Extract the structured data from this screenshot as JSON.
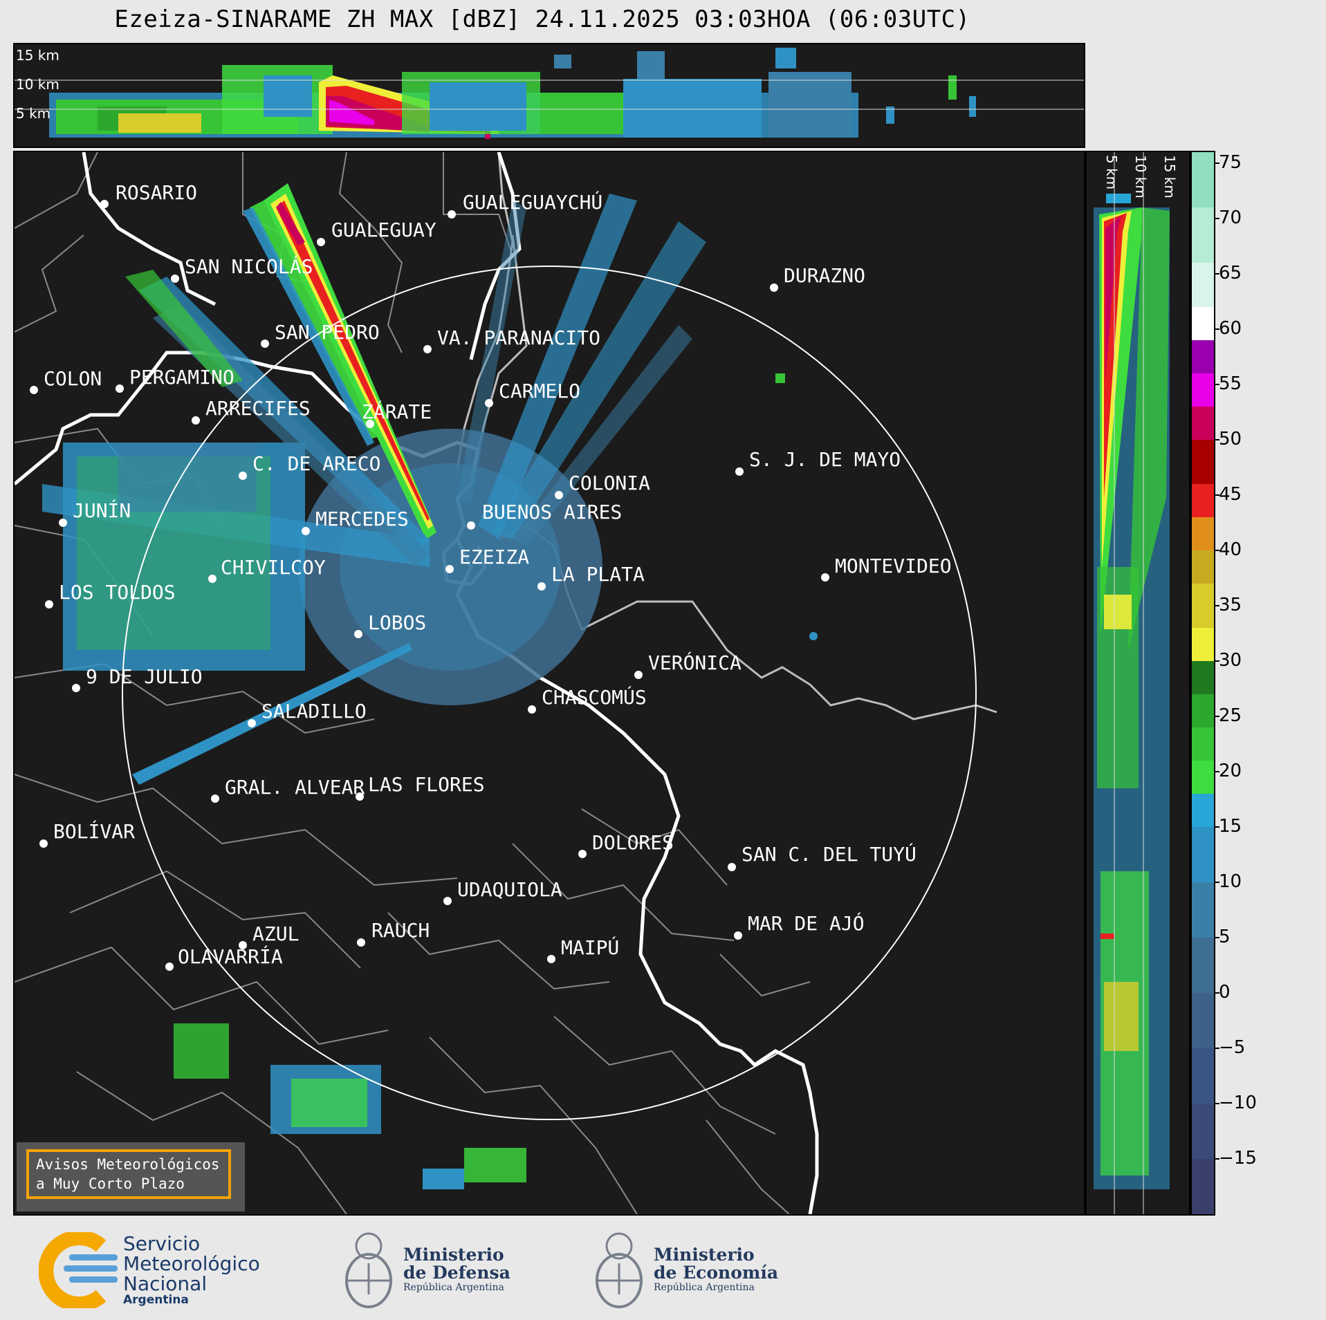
{
  "title": "Ezeiza-SINARAME ZH MAX [dBZ] 24.11.2025 03:03HOA (06:03UTC)",
  "cross_section_top": {
    "altitude_labels": [
      "15 km",
      "10 km",
      "5 km"
    ]
  },
  "cross_section_right": {
    "altitude_labels": [
      "5 km",
      "10 km",
      "15 km"
    ]
  },
  "colorbar": {
    "unit": "dBZ",
    "ticks": [
      "75",
      "70",
      "65",
      "60",
      "55",
      "50",
      "45",
      "40",
      "35",
      "30",
      "25",
      "20",
      "15",
      "10",
      "5",
      "0",
      "−5",
      "−10",
      "−15"
    ],
    "min": -20,
    "max": 76,
    "bands": [
      {
        "from": -20,
        "to": -15,
        "color": "#3b3f6b"
      },
      {
        "from": -15,
        "to": -10,
        "color": "#3c4a7a"
      },
      {
        "from": -10,
        "to": -5,
        "color": "#3b5583"
      },
      {
        "from": -5,
        "to": 0,
        "color": "#3d6188"
      },
      {
        "from": 0,
        "to": 5,
        "color": "#3f6e93"
      },
      {
        "from": 5,
        "to": 10,
        "color": "#3a7fa8"
      },
      {
        "from": 10,
        "to": 15,
        "color": "#2f92c4"
      },
      {
        "from": 15,
        "to": 18,
        "color": "#28a6d8"
      },
      {
        "from": 18,
        "to": 21,
        "color": "#3fdc3f"
      },
      {
        "from": 21,
        "to": 24,
        "color": "#36c436"
      },
      {
        "from": 24,
        "to": 27,
        "color": "#2ca82c"
      },
      {
        "from": 27,
        "to": 30,
        "color": "#1f7a1f"
      },
      {
        "from": 30,
        "to": 33,
        "color": "#efef3a"
      },
      {
        "from": 33,
        "to": 37,
        "color": "#d8cc2c"
      },
      {
        "from": 37,
        "to": 40,
        "color": "#c8aa20"
      },
      {
        "from": 40,
        "to": 43,
        "color": "#e0901a"
      },
      {
        "from": 43,
        "to": 46,
        "color": "#e82020"
      },
      {
        "from": 46,
        "to": 50,
        "color": "#a80000"
      },
      {
        "from": 50,
        "to": 53,
        "color": "#c8005a"
      },
      {
        "from": 53,
        "to": 56,
        "color": "#e800e8"
      },
      {
        "from": 56,
        "to": 59,
        "color": "#9a00b0"
      },
      {
        "from": 59,
        "to": 62,
        "color": "#ffffff"
      },
      {
        "from": 62,
        "to": 66,
        "color": "#d9f5ea"
      },
      {
        "from": 66,
        "to": 71,
        "color": "#b4ecd6"
      },
      {
        "from": 71,
        "to": 76,
        "color": "#8fdfc0"
      }
    ]
  },
  "cities": [
    {
      "name": "ROSARIO"
    },
    {
      "name": "GUALEGUAYCHÚ"
    },
    {
      "name": "GUALEGUAY"
    },
    {
      "name": "SAN NICOLÁS"
    },
    {
      "name": "DURAZNO"
    },
    {
      "name": "SAN PEDRO"
    },
    {
      "name": "VA. PARANACITO"
    },
    {
      "name": "COLON"
    },
    {
      "name": "PERGAMINO"
    },
    {
      "name": "CARMELO"
    },
    {
      "name": "ARRECIFES"
    },
    {
      "name": "ZÁRATE"
    },
    {
      "name": "C. DE ARECO"
    },
    {
      "name": "S. J. DE MAYO"
    },
    {
      "name": "COLONIA"
    },
    {
      "name": "BUENOS AIRES"
    },
    {
      "name": "JUNÍN"
    },
    {
      "name": "MERCEDES"
    },
    {
      "name": "EZEIZA"
    },
    {
      "name": "MONTEVIDEO"
    },
    {
      "name": "CHIVILCOY"
    },
    {
      "name": "LA PLATA"
    },
    {
      "name": "LOS TOLDOS"
    },
    {
      "name": "LOBOS"
    },
    {
      "name": "VERÓNICA"
    },
    {
      "name": "9 DE JULIO"
    },
    {
      "name": "CHASCOMÚS"
    },
    {
      "name": "SALADILLO"
    },
    {
      "name": "GRAL. ALVEAR"
    },
    {
      "name": "LAS FLORES"
    },
    {
      "name": "BOLÍVAR"
    },
    {
      "name": "DOLORES"
    },
    {
      "name": "SAN C. DEL TUYÚ"
    },
    {
      "name": "UDAQUIOLA"
    },
    {
      "name": "MAR DE AJÓ"
    },
    {
      "name": "RAUCH"
    },
    {
      "name": "AZUL"
    },
    {
      "name": "MAIPÚ"
    },
    {
      "name": "OLAVARRÍA"
    }
  ],
  "avisos": {
    "line1": "Avisos Meteorológicos",
    "line2": "a Muy Corto Plazo"
  },
  "footer": {
    "smn": {
      "line1": "Servicio",
      "line2": "Meteorológico",
      "line3": "Nacional",
      "line4": "Argentina"
    },
    "defensa": {
      "line1": "Ministerio",
      "line2": "de Defensa",
      "line3": "República Argentina"
    },
    "economia": {
      "line1": "Ministerio",
      "line2": "de Economía",
      "line3": "República Argentina"
    }
  },
  "colors": {
    "panel_bg": "#1b1b1b",
    "page_bg": "#e8e8e8",
    "coast": "#ffffff",
    "borders": "#8a8a8a",
    "avisos_border": "#f5a20a",
    "smn_yellow": "#f5a800",
    "smn_blue": "#5aa0d8"
  }
}
